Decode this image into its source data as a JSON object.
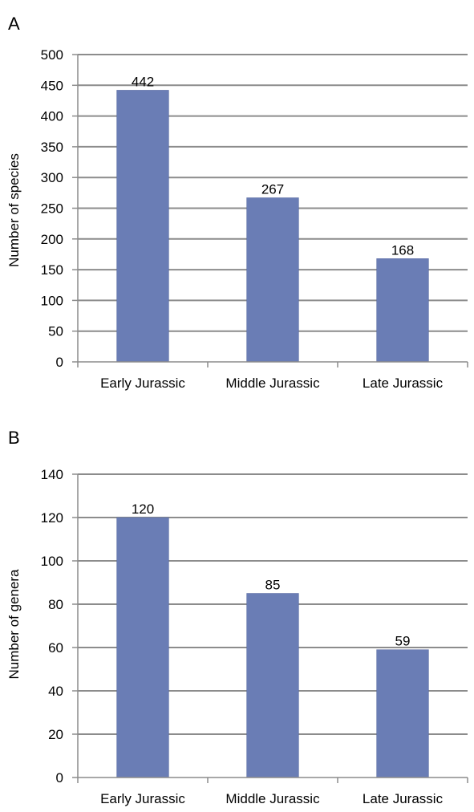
{
  "chart_data": [
    {
      "panel": "A",
      "type": "bar",
      "categories": [
        "Early Jurassic",
        "Middle Jurassic",
        "Late Jurassic"
      ],
      "values": [
        442,
        267,
        168
      ],
      "data_labels": [
        "442",
        "267",
        "168"
      ],
      "xlabel": "",
      "ylabel": "Number of species",
      "ylim": [
        0,
        500
      ],
      "yticks": [
        0,
        50,
        100,
        150,
        200,
        250,
        300,
        350,
        400,
        450,
        500
      ],
      "ytick_labels": [
        "0",
        "50",
        "100",
        "150",
        "200",
        "250",
        "300",
        "350",
        "400",
        "450",
        "500"
      ],
      "grid": true,
      "bar_color": "#6a7db5"
    },
    {
      "panel": "B",
      "type": "bar",
      "categories": [
        "Early Jurassic",
        "Middle Jurassic",
        "Late Jurassic"
      ],
      "values": [
        120,
        85,
        59
      ],
      "data_labels": [
        "120",
        "85",
        "59"
      ],
      "xlabel": "",
      "ylabel": "Number of genera",
      "ylim": [
        0,
        140
      ],
      "yticks": [
        0,
        20,
        40,
        60,
        80,
        100,
        120,
        140
      ],
      "ytick_labels": [
        "0",
        "20",
        "40",
        "60",
        "80",
        "100",
        "120",
        "140"
      ],
      "grid": true,
      "bar_color": "#6a7db5"
    }
  ],
  "colors": {
    "grid": "#8c8c8c",
    "axis": "#8c8c8c",
    "bar": "#6a7db5",
    "bar_edge": "#5668a0"
  }
}
